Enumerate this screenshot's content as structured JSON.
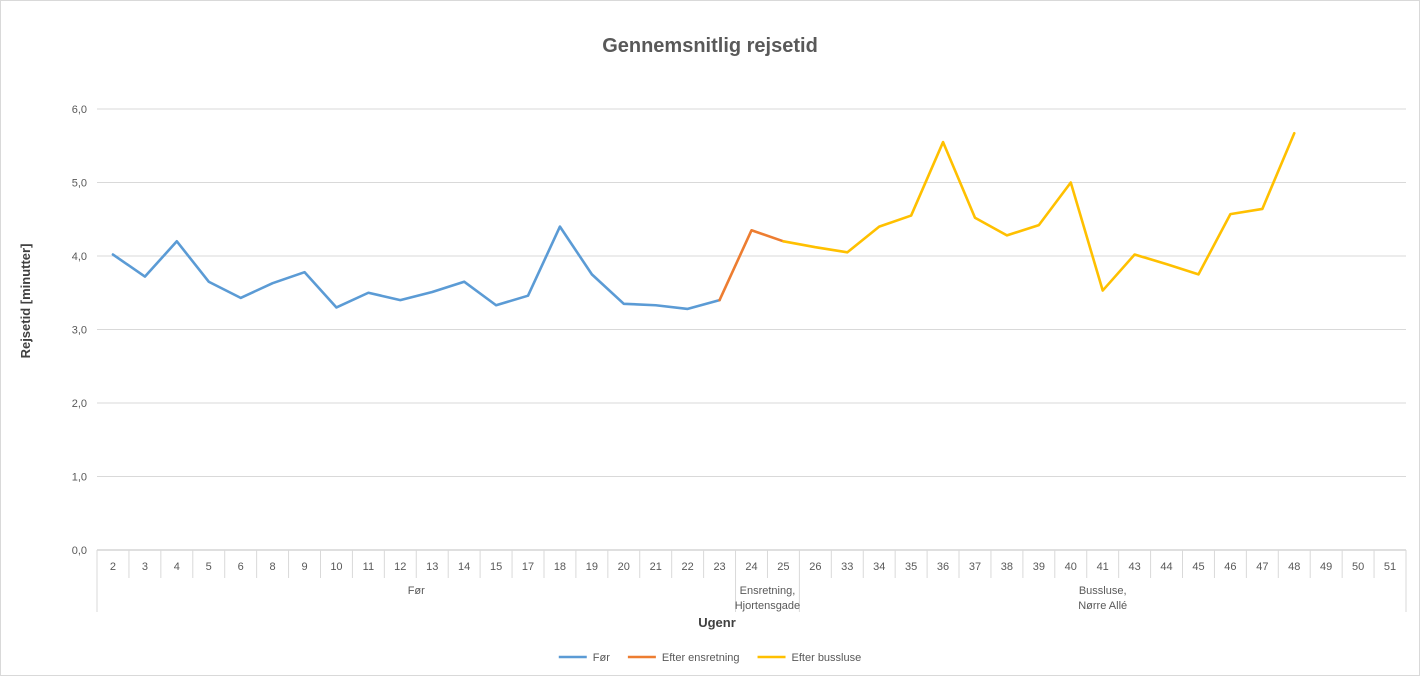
{
  "chart_data": {
    "type": "line",
    "title": "Gennemsnitlig rejsetid",
    "xlabel": "Ugenr",
    "ylabel": "Rejsetid [minutter]",
    "ylim": [
      0,
      6
    ],
    "yticks": [
      "0,0",
      "1,0",
      "2,0",
      "3,0",
      "4,0",
      "5,0",
      "6,0"
    ],
    "categories": [
      "2",
      "3",
      "4",
      "5",
      "6",
      "8",
      "9",
      "10",
      "11",
      "12",
      "13",
      "14",
      "15",
      "17",
      "18",
      "19",
      "20",
      "21",
      "22",
      "23",
      "24",
      "25",
      "26",
      "33",
      "34",
      "35",
      "36",
      "37",
      "38",
      "39",
      "40",
      "41",
      "43",
      "44",
      "45",
      "46",
      "47",
      "48",
      "49",
      "50",
      "51"
    ],
    "groups": [
      {
        "lines": [
          "Før"
        ],
        "start": 0,
        "end": 19
      },
      {
        "lines": [
          "Ensretning,",
          "Hjortensgade"
        ],
        "start": 20,
        "end": 21
      },
      {
        "lines": [
          "Bussluse,",
          "Nørre Allé"
        ],
        "start": 22,
        "end": 40
      }
    ],
    "series": [
      {
        "name": "Før",
        "color": "#5B9BD5",
        "values": [
          4.02,
          3.72,
          4.2,
          3.65,
          3.43,
          3.63,
          3.78,
          3.3,
          3.5,
          3.4,
          3.51,
          3.65,
          3.33,
          3.46,
          4.4,
          3.75,
          3.35,
          3.33,
          3.28,
          3.4,
          null,
          null,
          null,
          null,
          null,
          null,
          null,
          null,
          null,
          null,
          null,
          null,
          null,
          null,
          null,
          null,
          null,
          null,
          null,
          null,
          null
        ]
      },
      {
        "name": "Efter ensretning",
        "color": "#ED7D31",
        "values": [
          null,
          null,
          null,
          null,
          null,
          null,
          null,
          null,
          null,
          null,
          null,
          null,
          null,
          null,
          null,
          null,
          null,
          null,
          null,
          3.4,
          4.35,
          4.2,
          null,
          null,
          null,
          null,
          null,
          null,
          null,
          null,
          null,
          null,
          null,
          null,
          null,
          null,
          null,
          null,
          null,
          null,
          null
        ]
      },
      {
        "name": "Efter bussluse",
        "color": "#FFC000",
        "values": [
          null,
          null,
          null,
          null,
          null,
          null,
          null,
          null,
          null,
          null,
          null,
          null,
          null,
          null,
          null,
          null,
          null,
          null,
          null,
          null,
          null,
          4.2,
          4.12,
          4.05,
          4.4,
          4.55,
          5.55,
          4.52,
          4.28,
          4.42,
          5.0,
          3.53,
          4.02,
          3.89,
          3.75,
          4.57,
          4.64,
          5.67,
          null,
          null,
          null
        ]
      }
    ],
    "grid": true,
    "legend_position": "bottom"
  }
}
